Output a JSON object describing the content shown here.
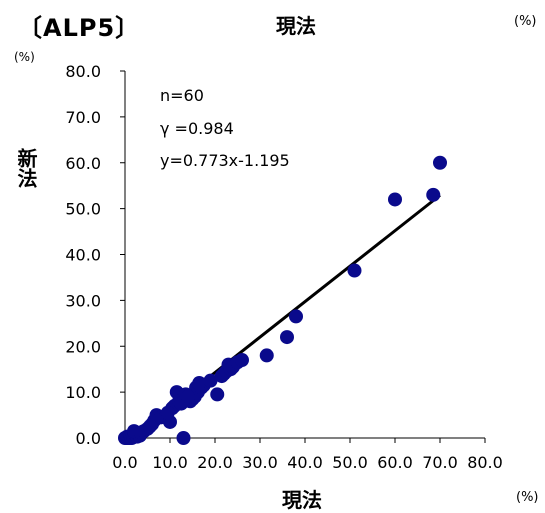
{
  "chart_data": {
    "type": "scatter",
    "title": "〔ALP5〕",
    "top_label": "現法",
    "top_unit": "(%)",
    "xlabel": "現法",
    "x_unit": "(%)",
    "ylabel": "新法",
    "y_unit": "(%)",
    "xlim": [
      0,
      80
    ],
    "ylim": [
      0,
      80
    ],
    "x_ticks": [
      "0.0",
      "10.0",
      "20.0",
      "30.0",
      "40.0",
      "50.0",
      "60.0",
      "70.0",
      "80.0"
    ],
    "y_ticks": [
      "0.0",
      "10.0",
      "20.0",
      "30.0",
      "40.0",
      "50.0",
      "60.0",
      "70.0",
      "80.0"
    ],
    "grid": false,
    "annotations": {
      "n": "n=60",
      "gamma": "γ =0.984",
      "equation": "y=0.773x-1.195"
    },
    "marker_color": "#0a0a8c",
    "line_color": "#000000",
    "regression": {
      "slope": 0.773,
      "intercept": -1.195,
      "x_range": [
        1.5,
        70
      ]
    },
    "points": [
      [
        0.0,
        0.0
      ],
      [
        0.3,
        0.0
      ],
      [
        0.5,
        0.3
      ],
      [
        0.7,
        0.0
      ],
      [
        0.9,
        0.3
      ],
      [
        1.1,
        0.0
      ],
      [
        1.3,
        0.4
      ],
      [
        1.5,
        0.0
      ],
      [
        1.7,
        0.5
      ],
      [
        1.9,
        0.2
      ],
      [
        2.1,
        1.0
      ],
      [
        2.4,
        0.6
      ],
      [
        2.7,
        0.3
      ],
      [
        3.0,
        0.8
      ],
      [
        3.3,
        0.5
      ],
      [
        2.0,
        1.5
      ],
      [
        3.5,
        1.2
      ],
      [
        4.2,
        1.5
      ],
      [
        5.0,
        2.0
      ],
      [
        5.5,
        2.5
      ],
      [
        6.0,
        3.0
      ],
      [
        6.5,
        3.8
      ],
      [
        7.0,
        5.0
      ],
      [
        8.0,
        4.5
      ],
      [
        9.0,
        4.5
      ],
      [
        10.0,
        3.5
      ],
      [
        10.5,
        6.5
      ],
      [
        11.0,
        7.0
      ],
      [
        11.5,
        10.0
      ],
      [
        12.0,
        8.0
      ],
      [
        13.0,
        0.0
      ],
      [
        13.5,
        9.5
      ],
      [
        14.5,
        8.0
      ],
      [
        15.0,
        8.5
      ],
      [
        15.5,
        9.0
      ],
      [
        15.8,
        11.0
      ],
      [
        16.2,
        10.0
      ],
      [
        17.0,
        11.0
      ],
      [
        17.5,
        11.5
      ],
      [
        20.5,
        9.5
      ],
      [
        21.5,
        13.5
      ],
      [
        22.0,
        14.0
      ],
      [
        22.5,
        14.5
      ],
      [
        23.0,
        16.0
      ],
      [
        23.5,
        15.0
      ],
      [
        24.0,
        15.5
      ],
      [
        25.0,
        16.5
      ],
      [
        26.0,
        17.0
      ],
      [
        31.5,
        18.0
      ],
      [
        36.0,
        22.0
      ],
      [
        38.0,
        26.5
      ],
      [
        51.0,
        36.5
      ],
      [
        60.0,
        52.0
      ],
      [
        68.5,
        53.0
      ],
      [
        70.0,
        60.0
      ],
      [
        9.5,
        5.5
      ],
      [
        12.5,
        7.5
      ],
      [
        14.0,
        9.0
      ],
      [
        16.5,
        12.0
      ],
      [
        19.0,
        12.5
      ]
    ]
  }
}
